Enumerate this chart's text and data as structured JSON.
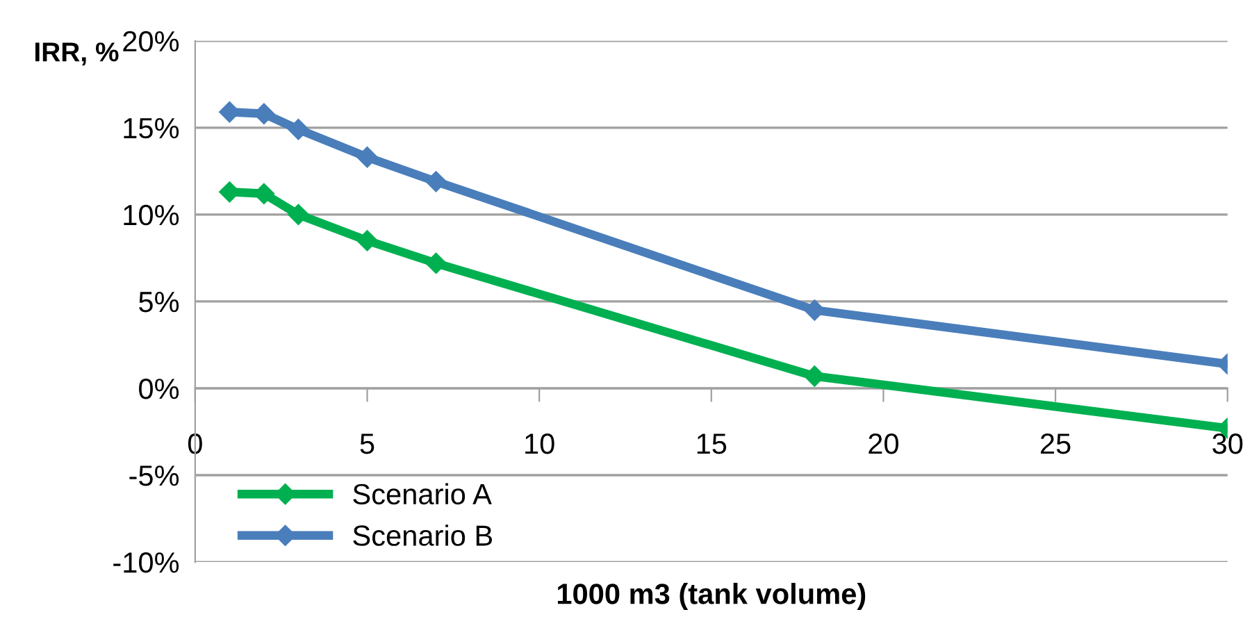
{
  "chart_data": {
    "type": "line",
    "ylabel": "IRR, %",
    "xlabel": "1000 m3 (tank volume)",
    "series": [
      {
        "name": "Scenario A",
        "color": "#00b050",
        "x": [
          1,
          2,
          3,
          5,
          7,
          18,
          30
        ],
        "values": [
          11.3,
          11.2,
          10.0,
          8.5,
          7.2,
          0.7,
          -2.3
        ]
      },
      {
        "name": "Scenario B",
        "color": "#4a7ebb",
        "x": [
          1,
          2,
          3,
          5,
          7,
          18,
          30
        ],
        "values": [
          15.9,
          15.8,
          14.9,
          13.3,
          11.9,
          4.5,
          1.4
        ]
      }
    ],
    "xlim": [
      0,
      30
    ],
    "xticks": [
      0,
      5,
      10,
      15,
      20,
      25,
      30
    ],
    "ylim": [
      -10,
      20
    ],
    "yticks": [
      {
        "value": -10,
        "label": "-10%"
      },
      {
        "value": -5,
        "label": "-5%"
      },
      {
        "value": 0,
        "label": "0%"
      },
      {
        "value": 5,
        "label": "5%"
      },
      {
        "value": 10,
        "label": "10%"
      },
      {
        "value": 15,
        "label": "15%"
      },
      {
        "value": 20,
        "label": "20%"
      }
    ],
    "grid": "y",
    "legend": "bottom left",
    "marker": "diamond",
    "line_style": "solid"
  }
}
